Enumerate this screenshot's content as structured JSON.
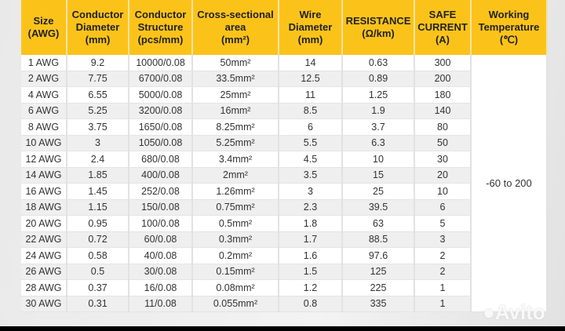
{
  "headers": [
    [
      "Size",
      "(AWG)"
    ],
    [
      "Conductor",
      "Diameter",
      "(mm)"
    ],
    [
      "Conductor",
      "Structure",
      "(pcs/mm)"
    ],
    [
      "Cross-sectional",
      "area",
      "(mm²)"
    ],
    [
      "Wire",
      "Diameter",
      "(mm)"
    ],
    [
      "RESISTANCE",
      "(Ω/km)"
    ],
    [
      "SAFE",
      "CURRENT",
      "(A)"
    ],
    [
      "Working",
      "Temperature",
      "(℃)"
    ]
  ],
  "rows": [
    [
      "1 AWG",
      "9.2",
      "10000/0.08",
      "50mm²",
      "14",
      "0.63",
      "300"
    ],
    [
      "2 AWG",
      "7.75",
      "6700/0.08",
      "33.5mm²",
      "12.5",
      "0.89",
      "200"
    ],
    [
      "4 AWG",
      "6.55",
      "5000/0.08",
      "25mm²",
      "11",
      "1.25",
      "180"
    ],
    [
      "6 AWG",
      "5.25",
      "3200/0.08",
      "16mm²",
      "8.5",
      "1.9",
      "140"
    ],
    [
      "8 AWG",
      "3.75",
      "1650/0.08",
      "8.25mm²",
      "6",
      "3.7",
      "80"
    ],
    [
      "10 AWG",
      "3",
      "1050/0.08",
      "5.25mm²",
      "5.5",
      "6.3",
      "50"
    ],
    [
      "12 AWG",
      "2.4",
      "680/0.08",
      "3.4mm²",
      "4.5",
      "10",
      "30"
    ],
    [
      "14 AWG",
      "1.85",
      "400/0.08",
      "2mm²",
      "3.5",
      "15",
      "20"
    ],
    [
      "16 AWG",
      "1.45",
      "252/0.08",
      "1.26mm²",
      "3",
      "25",
      "10"
    ],
    [
      "18 AWG",
      "1.15",
      "150/0.08",
      "0.75mm²",
      "2.3",
      "39.5",
      "6"
    ],
    [
      "20 AWG",
      "0.95",
      "100/0.08",
      "0.5mm²",
      "1.8",
      "63",
      "5"
    ],
    [
      "22 AWG",
      "0.72",
      "60/0.08",
      "0.3mm²",
      "1.7",
      "88.5",
      "3"
    ],
    [
      "24 AWG",
      "0.58",
      "40/0.08",
      "0.2mm²",
      "1.6",
      "97.6",
      "2"
    ],
    [
      "26 AWG",
      "0.5",
      "30/0.08",
      "0.15mm²",
      "1.5",
      "125",
      "2"
    ],
    [
      "28 AWG",
      "0.37",
      "16/0.08",
      "0.08mm²",
      "1.2",
      "225",
      "1"
    ],
    [
      "30 AWG",
      "0.31",
      "11/0.08",
      "0.055mm²",
      "0.8",
      "335",
      "1"
    ]
  ],
  "working_temperature": "-60 to 200",
  "watermark": "Avito",
  "colors": {
    "header_bg": "#fbc31a",
    "row_alt": "#efefef"
  }
}
